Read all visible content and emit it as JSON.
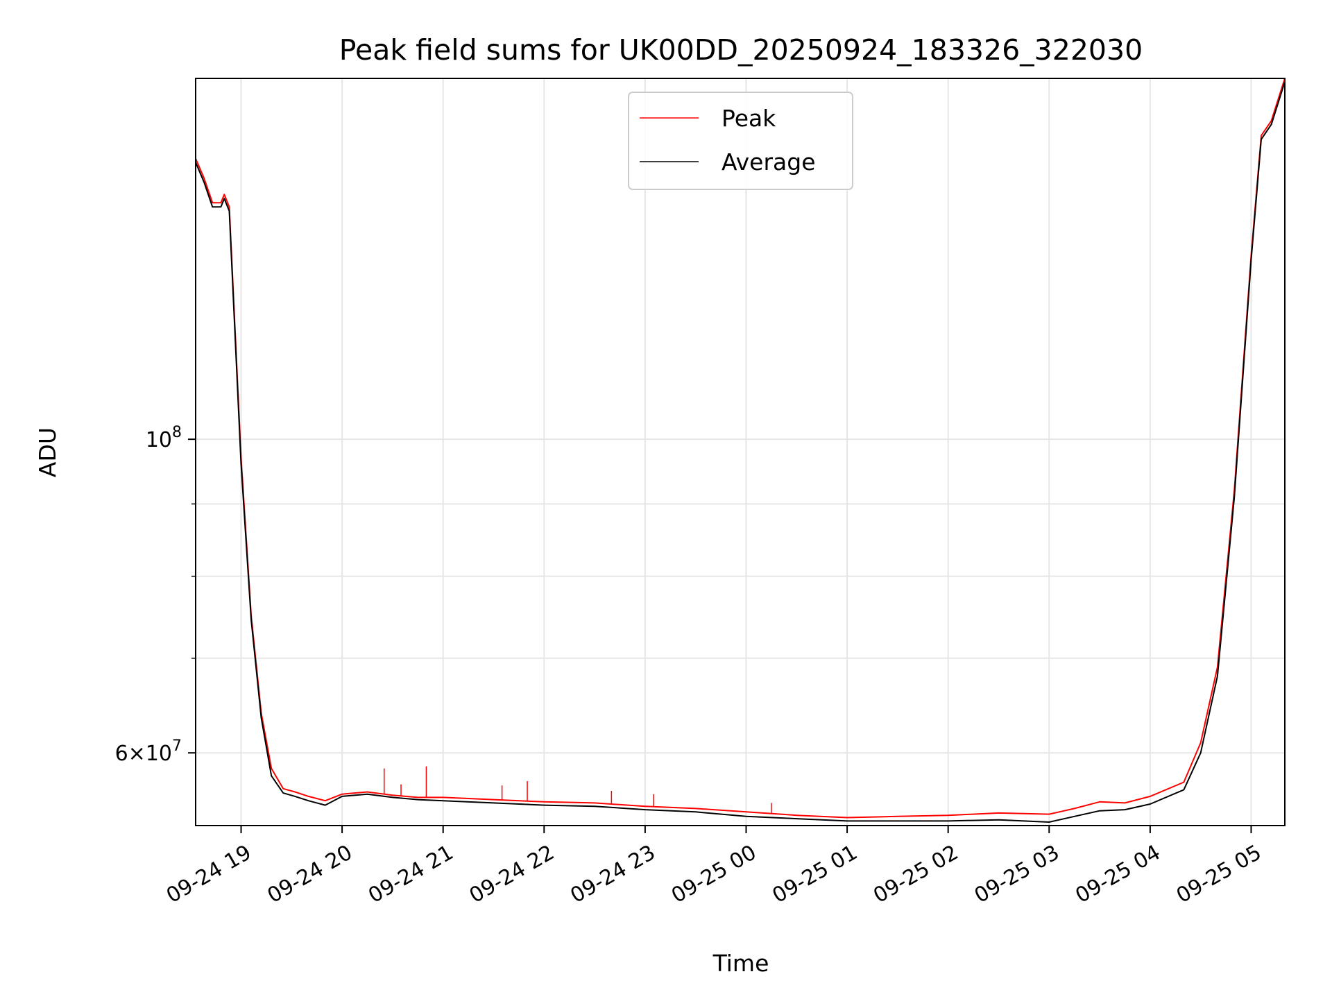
{
  "chart_data": {
    "type": "line",
    "title": "Peak field sums for UK00DD_20250924_183326_322030",
    "xlabel": "Time",
    "ylabel": "ADU",
    "y_scale": "log",
    "ylim": [
      53300000,
      180000000
    ],
    "xlim": [
      "2025-09-24 18:33",
      "2025-09-25 05:20"
    ],
    "x_ticks": [
      {
        "value": "2025-09-24 19:00",
        "label": "09-24 19"
      },
      {
        "value": "2025-09-24 20:00",
        "label": "09-24 20"
      },
      {
        "value": "2025-09-24 21:00",
        "label": "09-24 21"
      },
      {
        "value": "2025-09-24 22:00",
        "label": "09-24 22"
      },
      {
        "value": "2025-09-24 23:00",
        "label": "09-24 23"
      },
      {
        "value": "2025-09-25 00:00",
        "label": "09-25 00"
      },
      {
        "value": "2025-09-25 01:00",
        "label": "09-25 01"
      },
      {
        "value": "2025-09-25 02:00",
        "label": "09-25 02"
      },
      {
        "value": "2025-09-25 03:00",
        "label": "09-25 03"
      },
      {
        "value": "2025-09-25 04:00",
        "label": "09-25 04"
      },
      {
        "value": "2025-09-25 05:00",
        "label": "09-25 05"
      }
    ],
    "y_ticks_major": [
      {
        "value": 100000000,
        "base": "10",
        "exp": "8",
        "mant": ""
      },
      {
        "value": 60000000,
        "base": "10",
        "exp": "7",
        "mant": "6"
      }
    ],
    "y_ticks_minor": [
      70000000,
      80000000,
      90000000
    ],
    "grid": true,
    "legend_position": "top-center",
    "series": [
      {
        "name": "Peak",
        "color": "#ff0000",
        "x": [
          "2025-09-24 18:33",
          "2025-09-24 18:38",
          "2025-09-24 18:43",
          "2025-09-24 18:48",
          "2025-09-24 18:50",
          "2025-09-24 18:53",
          "2025-09-24 19:00",
          "2025-09-24 19:06",
          "2025-09-24 19:12",
          "2025-09-24 19:18",
          "2025-09-24 19:25",
          "2025-09-24 19:32",
          "2025-09-24 19:40",
          "2025-09-24 19:50",
          "2025-09-24 20:00",
          "2025-09-24 20:15",
          "2025-09-24 20:30",
          "2025-09-24 20:45",
          "2025-09-24 21:00",
          "2025-09-24 21:30",
          "2025-09-24 22:00",
          "2025-09-24 22:30",
          "2025-09-24 23:00",
          "2025-09-24 23:30",
          "2025-09-25 00:00",
          "2025-09-25 00:30",
          "2025-09-25 01:00",
          "2025-09-25 01:30",
          "2025-09-25 02:00",
          "2025-09-25 02:30",
          "2025-09-25 03:00",
          "2025-09-25 03:15",
          "2025-09-25 03:30",
          "2025-09-25 03:45",
          "2025-09-25 04:00",
          "2025-09-25 04:20",
          "2025-09-25 04:30",
          "2025-09-25 04:40",
          "2025-09-25 04:50",
          "2025-09-25 05:00",
          "2025-09-25 05:06",
          "2025-09-25 05:12",
          "2025-09-25 05:20"
        ],
        "y": [
          158000000,
          153000000,
          147000000,
          147000000,
          149000000,
          146000000,
          97000000,
          75000000,
          64000000,
          58500000,
          56600000,
          56300000,
          55900000,
          55500000,
          56100000,
          56300000,
          56000000,
          55800000,
          55800000,
          55600000,
          55400000,
          55300000,
          55000000,
          54800000,
          54500000,
          54200000,
          54000000,
          54100000,
          54200000,
          54400000,
          54300000,
          54800000,
          55400000,
          55300000,
          55900000,
          57200000,
          61000000,
          69000000,
          92000000,
          135000000,
          164000000,
          168000000,
          180000000
        ],
        "spikes": [
          {
            "x": "2025-09-24 20:25",
            "y": 58500000
          },
          {
            "x": "2025-09-24 20:35",
            "y": 57000000
          },
          {
            "x": "2025-09-24 20:50",
            "y": 58700000
          },
          {
            "x": "2025-09-24 21:35",
            "y": 56900000
          },
          {
            "x": "2025-09-24 21:50",
            "y": 57300000
          },
          {
            "x": "2025-09-24 22:40",
            "y": 56400000
          },
          {
            "x": "2025-09-24 23:05",
            "y": 56100000
          },
          {
            "x": "2025-09-25 00:15",
            "y": 55300000
          }
        ]
      },
      {
        "name": "Average",
        "color": "#000000",
        "x": [
          "2025-09-24 18:33",
          "2025-09-24 18:38",
          "2025-09-24 18:43",
          "2025-09-24 18:48",
          "2025-09-24 18:50",
          "2025-09-24 18:53",
          "2025-09-24 19:00",
          "2025-09-24 19:06",
          "2025-09-24 19:12",
          "2025-09-24 19:18",
          "2025-09-24 19:25",
          "2025-09-24 19:32",
          "2025-09-24 19:40",
          "2025-09-24 19:50",
          "2025-09-24 20:00",
          "2025-09-24 20:15",
          "2025-09-24 20:30",
          "2025-09-24 20:45",
          "2025-09-24 21:00",
          "2025-09-24 21:30",
          "2025-09-24 22:00",
          "2025-09-24 22:30",
          "2025-09-24 23:00",
          "2025-09-24 23:30",
          "2025-09-25 00:00",
          "2025-09-25 00:30",
          "2025-09-25 01:00",
          "2025-09-25 01:30",
          "2025-09-25 02:00",
          "2025-09-25 02:30",
          "2025-09-25 03:00",
          "2025-09-25 03:15",
          "2025-09-25 03:30",
          "2025-09-25 03:45",
          "2025-09-25 04:00",
          "2025-09-25 04:20",
          "2025-09-25 04:30",
          "2025-09-25 04:40",
          "2025-09-25 04:50",
          "2025-09-25 05:00",
          "2025-09-25 05:06",
          "2025-09-25 05:12",
          "2025-09-25 05:20"
        ],
        "y": [
          157000000,
          152000000,
          146000000,
          146000000,
          148000000,
          145000000,
          96000000,
          74500000,
          63500000,
          57800000,
          56200000,
          55900000,
          55500000,
          55100000,
          55900000,
          56100000,
          55800000,
          55600000,
          55500000,
          55300000,
          55100000,
          55000000,
          54700000,
          54500000,
          54100000,
          53900000,
          53700000,
          53700000,
          53700000,
          53800000,
          53600000,
          54100000,
          54600000,
          54700000,
          55200000,
          56500000,
          60000000,
          68000000,
          91000000,
          134000000,
          163000000,
          167000000,
          179000000
        ]
      }
    ]
  }
}
